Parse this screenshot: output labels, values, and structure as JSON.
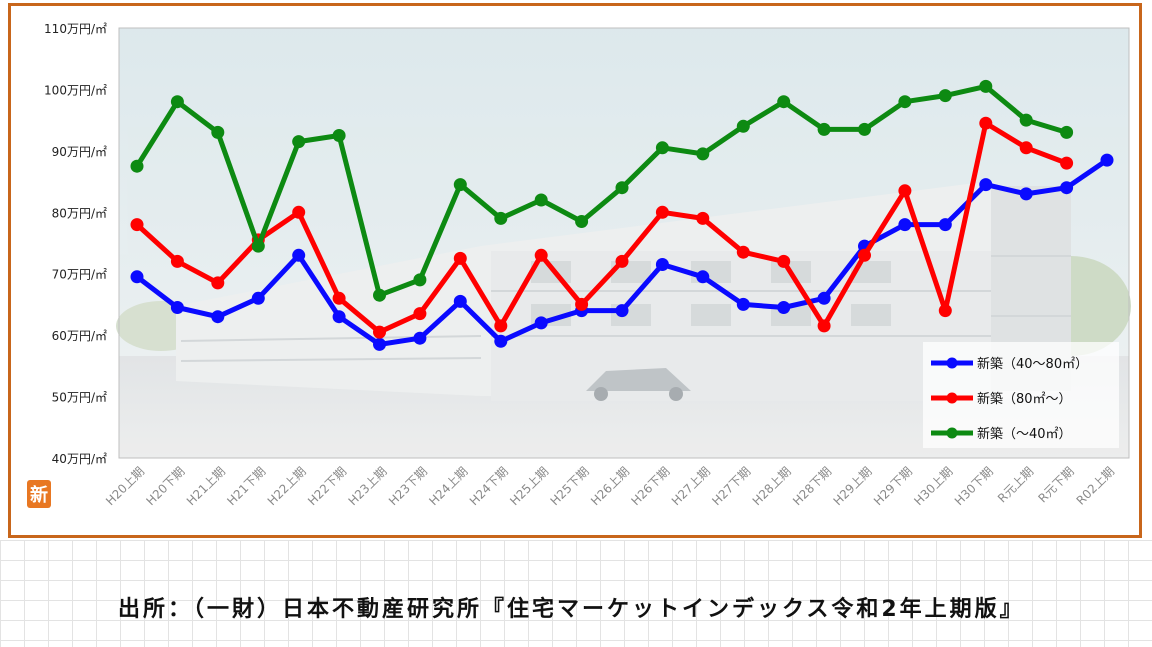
{
  "chart_data": {
    "type": "line",
    "categories": [
      "H20上期",
      "H20下期",
      "H21上期",
      "H21下期",
      "H22上期",
      "H22下期",
      "H23上期",
      "H23下期",
      "H24上期",
      "H24下期",
      "H25上期",
      "H25下期",
      "H26上期",
      "H26下期",
      "H27上期",
      "H27下期",
      "H28上期",
      "H28下期",
      "H29上期",
      "H29下期",
      "H30上期",
      "H30下期",
      "R元上期",
      "R元下期",
      "R02上期"
    ],
    "y_ticks": [
      "40万円/㎡",
      "50万円/㎡",
      "60万円/㎡",
      "70万円/㎡",
      "80万円/㎡",
      "90万円/㎡",
      "100万円/㎡",
      "110万円/㎡"
    ],
    "ylim": [
      40,
      110
    ],
    "grid": false,
    "legend_position": "bottom-right",
    "series": [
      {
        "name": "新築（40～80㎡）",
        "color": "#0a0aff",
        "values": [
          69.5,
          64.5,
          63,
          66,
          73,
          63,
          58.5,
          59.5,
          65.5,
          59,
          62,
          64,
          64,
          71.5,
          69.5,
          65,
          64.5,
          66,
          74.5,
          78,
          78,
          84.5,
          83,
          84,
          88.5
        ]
      },
      {
        "name": "新築（80㎡～）",
        "color": "#ff0000",
        "values": [
          78,
          72,
          68.5,
          75.5,
          80,
          66,
          60.5,
          63.5,
          72.5,
          61.5,
          73,
          65,
          72,
          80,
          79,
          73.5,
          72,
          61.5,
          73,
          83.5,
          64,
          94.5,
          90.5,
          88,
          null
        ]
      },
      {
        "name": "新築（～40㎡）",
        "color": "#0d8a12",
        "values": [
          87.5,
          98,
          93,
          74.5,
          91.5,
          92.5,
          66.5,
          69,
          84.5,
          79,
          82,
          78.5,
          84,
          90.5,
          89.5,
          94,
          98,
          93.5,
          93.5,
          98,
          99,
          100.5,
          95,
          93,
          null
        ]
      }
    ]
  },
  "source_note": "出所：（一財）日本不動産研究所『住宅マーケットインデックス令和2年上期版』",
  "badge": "新"
}
